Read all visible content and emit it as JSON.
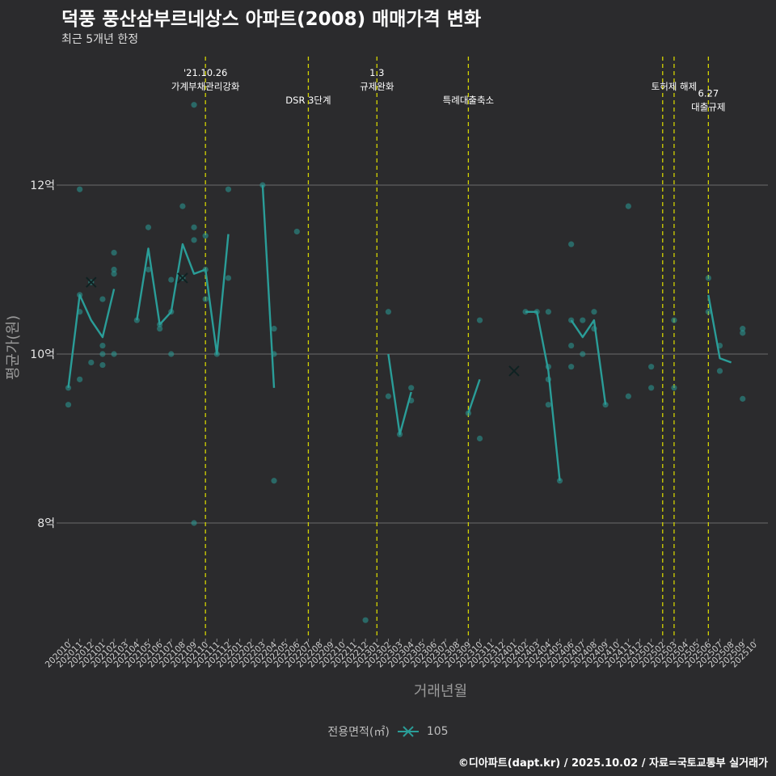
{
  "chart_data": {
    "type": "line",
    "title": "덕풍 풍산삼부르네상스 아파트(2008) 매매가격 변화",
    "subtitle": "최근 5개년 한정",
    "xlabel": "거래년월",
    "ylabel": "평균가(원)",
    "caption": "©디아파트(dapt.kr) / 2025.10.02 / 자료=국토교통부 실거래가",
    "legend_title": "전용면적(㎡)",
    "series_name": "105",
    "colors": {
      "series": "#2a9d98",
      "event": "#d4d400",
      "grid": "#6b6b6b",
      "text": "#e6e6e6"
    },
    "ylim": [
      6.6,
      13.5
    ],
    "yticks": [
      {
        "v": 8,
        "label": "8억"
      },
      {
        "v": 10,
        "label": "10억"
      },
      {
        "v": 12,
        "label": "12억"
      }
    ],
    "months": [
      "202010",
      "202011",
      "202012",
      "202101",
      "202102",
      "202103",
      "202104",
      "202105",
      "202106",
      "202107",
      "202108",
      "202109",
      "202110",
      "202111",
      "202112",
      "202201",
      "202202",
      "202203",
      "202204",
      "202205",
      "202206",
      "202207",
      "202208",
      "202209",
      "202210",
      "202211",
      "202212",
      "202301",
      "202302",
      "202303",
      "202304",
      "202305",
      "202306",
      "202307",
      "202308",
      "202309",
      "202310",
      "202311",
      "202312",
      "202401",
      "202402",
      "202403",
      "202404",
      "202405",
      "202406",
      "202407",
      "202408",
      "202409",
      "202410",
      "202411",
      "202412",
      "202501",
      "202502",
      "202503",
      "202504",
      "202505",
      "202506",
      "202507",
      "202508",
      "202509",
      "202510"
    ],
    "line_segments": [
      [
        [
          0,
          9.6
        ],
        [
          1,
          10.7
        ],
        [
          2,
          10.4
        ],
        [
          3,
          10.2
        ],
        [
          4,
          10.77
        ]
      ],
      [
        [
          6,
          10.4
        ],
        [
          7,
          11.25
        ],
        [
          8,
          10.35
        ],
        [
          9,
          10.5
        ],
        [
          10,
          11.3
        ],
        [
          11,
          10.95
        ],
        [
          12,
          11.0
        ],
        [
          13,
          10.0
        ],
        [
          14,
          11.42
        ]
      ],
      [
        [
          17,
          12.0
        ],
        [
          18,
          9.6
        ]
      ],
      [
        [
          28,
          10.0
        ],
        [
          29,
          9.05
        ],
        [
          30,
          9.55
        ]
      ],
      [
        [
          35,
          9.3
        ],
        [
          36,
          9.7
        ]
      ],
      [
        [
          40,
          10.5
        ],
        [
          41,
          10.5
        ],
        [
          42,
          9.8
        ],
        [
          43,
          8.5
        ]
      ],
      [
        [
          44,
          10.4
        ],
        [
          45,
          10.2
        ],
        [
          46,
          10.4
        ],
        [
          47,
          9.4
        ]
      ],
      [
        [
          56,
          10.7
        ],
        [
          57,
          9.95
        ],
        [
          58,
          9.9
        ]
      ]
    ],
    "points": [
      [
        0,
        9.4
      ],
      [
        0,
        9.6
      ],
      [
        1,
        9.7
      ],
      [
        1,
        10.5
      ],
      [
        1,
        11.95
      ],
      [
        1,
        10.7
      ],
      [
        2,
        10.85
      ],
      [
        2,
        9.9
      ],
      [
        3,
        9.87
      ],
      [
        3,
        10.0
      ],
      [
        3,
        10.1
      ],
      [
        3,
        10.65
      ],
      [
        4,
        10.0
      ],
      [
        4,
        10.95
      ],
      [
        4,
        11.0
      ],
      [
        4,
        11.2
      ],
      [
        6,
        10.4
      ],
      [
        7,
        11.5
      ],
      [
        7,
        11.0
      ],
      [
        8,
        10.35
      ],
      [
        8,
        10.3
      ],
      [
        9,
        10.0
      ],
      [
        9,
        10.5
      ],
      [
        9,
        10.88
      ],
      [
        10,
        10.9
      ],
      [
        10,
        11.75
      ],
      [
        11,
        11.5
      ],
      [
        11,
        11.35
      ],
      [
        11,
        12.95
      ],
      [
        11,
        8.0
      ],
      [
        12,
        11.4
      ],
      [
        12,
        11.0
      ],
      [
        12,
        10.65
      ],
      [
        13,
        10.0
      ],
      [
        14,
        10.9
      ],
      [
        14,
        11.95
      ],
      [
        17,
        12.0
      ],
      [
        18,
        10.3
      ],
      [
        18,
        10.0
      ],
      [
        18,
        8.5
      ],
      [
        20,
        11.45
      ],
      [
        26,
        6.85
      ],
      [
        28,
        10.5
      ],
      [
        28,
        9.5
      ],
      [
        29,
        9.05
      ],
      [
        30,
        9.45
      ],
      [
        30,
        9.6
      ],
      [
        35,
        9.3
      ],
      [
        36,
        9.0
      ],
      [
        36,
        10.4
      ],
      [
        40,
        10.5
      ],
      [
        41,
        10.5
      ],
      [
        42,
        10.5
      ],
      [
        42,
        9.85
      ],
      [
        42,
        9.7
      ],
      [
        42,
        9.4
      ],
      [
        43,
        8.5
      ],
      [
        44,
        10.4
      ],
      [
        44,
        10.1
      ],
      [
        44,
        9.85
      ],
      [
        44,
        11.3
      ],
      [
        45,
        10.0
      ],
      [
        45,
        10.4
      ],
      [
        46,
        10.5
      ],
      [
        46,
        10.3
      ],
      [
        47,
        9.4
      ],
      [
        49,
        9.5
      ],
      [
        49,
        11.75
      ],
      [
        51,
        9.6
      ],
      [
        51,
        9.85
      ],
      [
        53,
        10.4
      ],
      [
        53,
        9.6
      ],
      [
        56,
        10.9
      ],
      [
        56,
        10.5
      ],
      [
        57,
        10.1
      ],
      [
        57,
        9.8
      ],
      [
        59,
        10.3
      ],
      [
        59,
        10.25
      ],
      [
        59,
        9.47
      ]
    ],
    "cross_markers": [
      [
        2,
        10.85
      ],
      [
        10,
        10.9
      ],
      [
        39,
        9.8
      ]
    ],
    "events": [
      {
        "x": 12,
        "lines": [
          "'21.10.26",
          "가계부채관리강화"
        ],
        "row": 0
      },
      {
        "x": 21,
        "lines": [
          "DSR 3단계"
        ],
        "row": 2
      },
      {
        "x": 27,
        "lines": [
          "1.3",
          "규제완화"
        ],
        "row": 0
      },
      {
        "x": 35,
        "lines": [
          "특례대출축소"
        ],
        "row": 2
      },
      {
        "x": 52,
        "lines": [],
        "row": 1
      },
      {
        "x": 53,
        "lines": [
          "토허제 해제"
        ],
        "row": 1
      },
      {
        "x": 56,
        "lines": [
          "6.27",
          "대출규제"
        ],
        "row": 1.5
      }
    ]
  }
}
